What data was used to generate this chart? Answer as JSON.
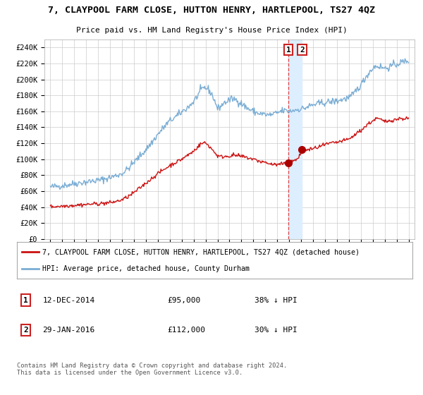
{
  "title": "7, CLAYPOOL FARM CLOSE, HUTTON HENRY, HARTLEPOOL, TS27 4QZ",
  "subtitle": "Price paid vs. HM Land Registry's House Price Index (HPI)",
  "legend_line1": "7, CLAYPOOL FARM CLOSE, HUTTON HENRY, HARTLEPOOL, TS27 4QZ (detached house)",
  "legend_line2": "HPI: Average price, detached house, County Durham",
  "transaction1_date": "12-DEC-2014",
  "transaction1_price": "£95,000",
  "transaction1_hpi": "38% ↓ HPI",
  "transaction2_date": "29-JAN-2016",
  "transaction2_price": "£112,000",
  "transaction2_hpi": "30% ↓ HPI",
  "footer": "Contains HM Land Registry data © Crown copyright and database right 2024.\nThis data is licensed under the Open Government Licence v3.0.",
  "hpi_color": "#7aadd4",
  "price_color": "#cc1111",
  "marker_color": "#aa0000",
  "dashed_line_color": "#dd4444",
  "shaded_color": "#ddeeff",
  "grid_color": "#cccccc",
  "background_color": "#ffffff",
  "ylim": [
    0,
    250000
  ],
  "transaction1_x": 2014.94,
  "transaction1_y": 95000,
  "transaction2_x": 2016.08,
  "transaction2_y": 112000,
  "shade_x1": 2014.94,
  "shade_x2": 2016.08,
  "xlim_left": 1994.5,
  "xlim_right": 2025.5
}
